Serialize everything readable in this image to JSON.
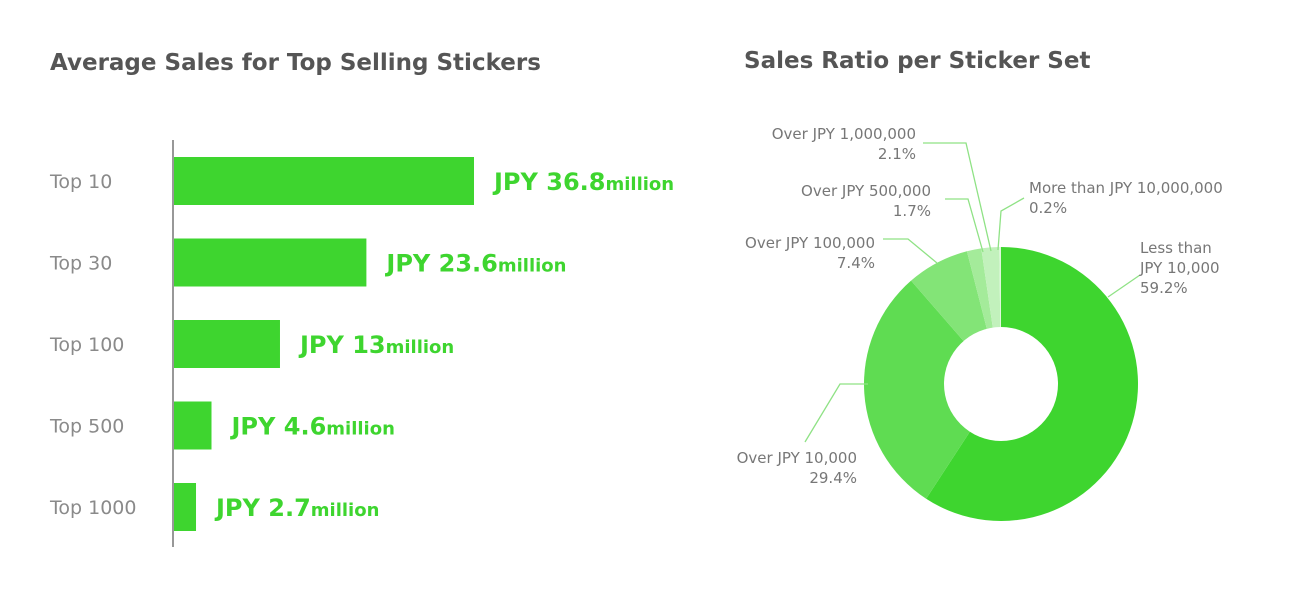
{
  "colors": {
    "title": "#555555",
    "category_label": "#8a8a8a",
    "bar": "#3ed52f",
    "bar_value": "#3ed52f",
    "axis": "#777777",
    "pie_label": "#777777",
    "leader_line": "#8fe285",
    "donut_hole": "#ffffff"
  },
  "chart_data": [
    {
      "type": "bar",
      "orientation": "horizontal",
      "title": "Average Sales for Top Selling Stickers",
      "categories": [
        "Top 10",
        "Top 30",
        "Top 100",
        "Top 500",
        "Top 1000"
      ],
      "values": [
        36.8,
        23.6,
        13,
        4.6,
        2.7
      ],
      "value_labels": [
        {
          "main": "JPY 36.8",
          "unit": "million"
        },
        {
          "main": "JPY 23.6",
          "unit": "million"
        },
        {
          "main": "JPY 13",
          "unit": "million"
        },
        {
          "main": "JPY 4.6",
          "unit": "million"
        },
        {
          "main": "JPY 2.7",
          "unit": "million"
        }
      ],
      "xlim": [
        0,
        36.8
      ],
      "grid": false,
      "legend": false
    },
    {
      "type": "pie",
      "donut": true,
      "title": "Sales Ratio per Sticker Set",
      "slices": [
        {
          "label_lines": [
            "Less than",
            "JPY 10,000"
          ],
          "percent_label": "59.2%",
          "value": 59.2,
          "color": "#3ed52f"
        },
        {
          "label_lines": [
            "Over JPY 10,000"
          ],
          "percent_label": "29.4%",
          "value": 29.4,
          "color": "#5fdc52"
        },
        {
          "label_lines": [
            "Over JPY 100,000"
          ],
          "percent_label": "7.4%",
          "value": 7.4,
          "color": "#83e477"
        },
        {
          "label_lines": [
            "Over JPY 500,000"
          ],
          "percent_label": "1.7%",
          "value": 1.7,
          "color": "#a4eb9a"
        },
        {
          "label_lines": [
            "Over JPY 1,000,000"
          ],
          "percent_label": "2.1%",
          "value": 2.1,
          "color": "#c2f1bc"
        },
        {
          "label_lines": [
            "More than JPY 10,000,000"
          ],
          "percent_label": "0.2%",
          "value": 0.2,
          "color": "#def7da"
        }
      ],
      "legend": false
    }
  ]
}
